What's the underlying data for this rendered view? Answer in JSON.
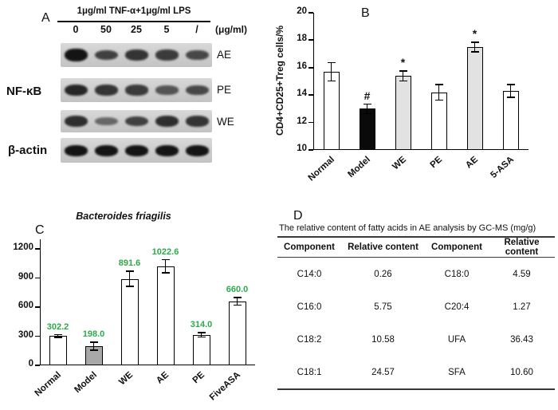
{
  "figure": {
    "panelA": {
      "label": "A",
      "header": "1μg/ml TNF-α+1μg/ml LPS",
      "unit": "(μg/ml)",
      "lanes": [
        "0",
        "50",
        "25",
        "5",
        "/"
      ],
      "left_label_top": "NF-κB",
      "left_label_bottom": "β-actin",
      "rows": [
        {
          "name": "AE",
          "intensities": [
            1.0,
            0.65,
            0.75,
            0.7,
            0.6
          ]
        },
        {
          "name": "PE",
          "intensities": [
            0.85,
            0.75,
            0.7,
            0.5,
            0.6
          ]
        },
        {
          "name": "WE",
          "intensities": [
            0.8,
            0.35,
            0.65,
            0.8,
            0.75
          ]
        },
        {
          "name": "β-actin",
          "intensities": [
            1,
            1,
            1,
            1,
            1
          ],
          "uniform": true
        }
      ]
    },
    "panelB": {
      "label": "B"
    },
    "panelC": {
      "label": "C"
    },
    "panelD": {
      "label": "D",
      "title": "The relative content of fatty acids in AE analysis by GC-MS (mg/g)",
      "headers": [
        "Component",
        "Relative content",
        "Component",
        "Relative content"
      ],
      "rows": [
        [
          "C14:0",
          "0.26",
          "C18:0",
          "4.59"
        ],
        [
          "C16:0",
          "5.75",
          "C20:4",
          "1.27"
        ],
        [
          "C18:2",
          "10.58",
          "UFA",
          "36.43"
        ],
        [
          "C18:1",
          "24.57",
          "SFA",
          "10.60"
        ]
      ]
    }
  },
  "chart_data": [
    {
      "panel": "B",
      "type": "bar",
      "title": "",
      "ylabel": "CD4+CD25+Treg cells/%",
      "categories": [
        "Normal",
        "Model",
        "WE",
        "PE",
        "AE",
        "5-ASA"
      ],
      "values": [
        15.7,
        13.0,
        15.4,
        14.2,
        17.5,
        14.3
      ],
      "errors": [
        0.7,
        0.4,
        0.4,
        0.6,
        0.4,
        0.5
      ],
      "annotations": [
        "",
        "#",
        "*",
        "",
        "*",
        ""
      ],
      "bar_colors": [
        "#ffffff",
        "#0a0a0a",
        "#e2e2e2",
        "#ffffff",
        "#e2e2e2",
        "#ffffff"
      ],
      "ylim": [
        10,
        20
      ],
      "yticks": [
        10,
        12,
        14,
        16,
        18,
        20
      ],
      "grid": false,
      "legend": false
    },
    {
      "panel": "C",
      "type": "bar",
      "title": "Bacteroides friagilis",
      "categories": [
        "Normal",
        "Model",
        "WE",
        "AE",
        "PE",
        "FiveASA"
      ],
      "values": [
        302.2,
        198.0,
        891.6,
        1022.6,
        314.0,
        660.0
      ],
      "errors": [
        22,
        48,
        85,
        75,
        28,
        45
      ],
      "value_labels": [
        "302.2",
        "198.0",
        "891.6",
        "1022.6",
        "314.0",
        "660.0"
      ],
      "value_label_color": "#2eaa4a",
      "bar_colors": [
        "#ffffff",
        "#a8a8a8",
        "#ffffff",
        "#ffffff",
        "#ffffff",
        "#ffffff"
      ],
      "ylim": [
        0,
        1300
      ],
      "yticks": [
        0,
        300,
        600,
        900,
        1200
      ],
      "grid": false,
      "legend": false
    }
  ]
}
